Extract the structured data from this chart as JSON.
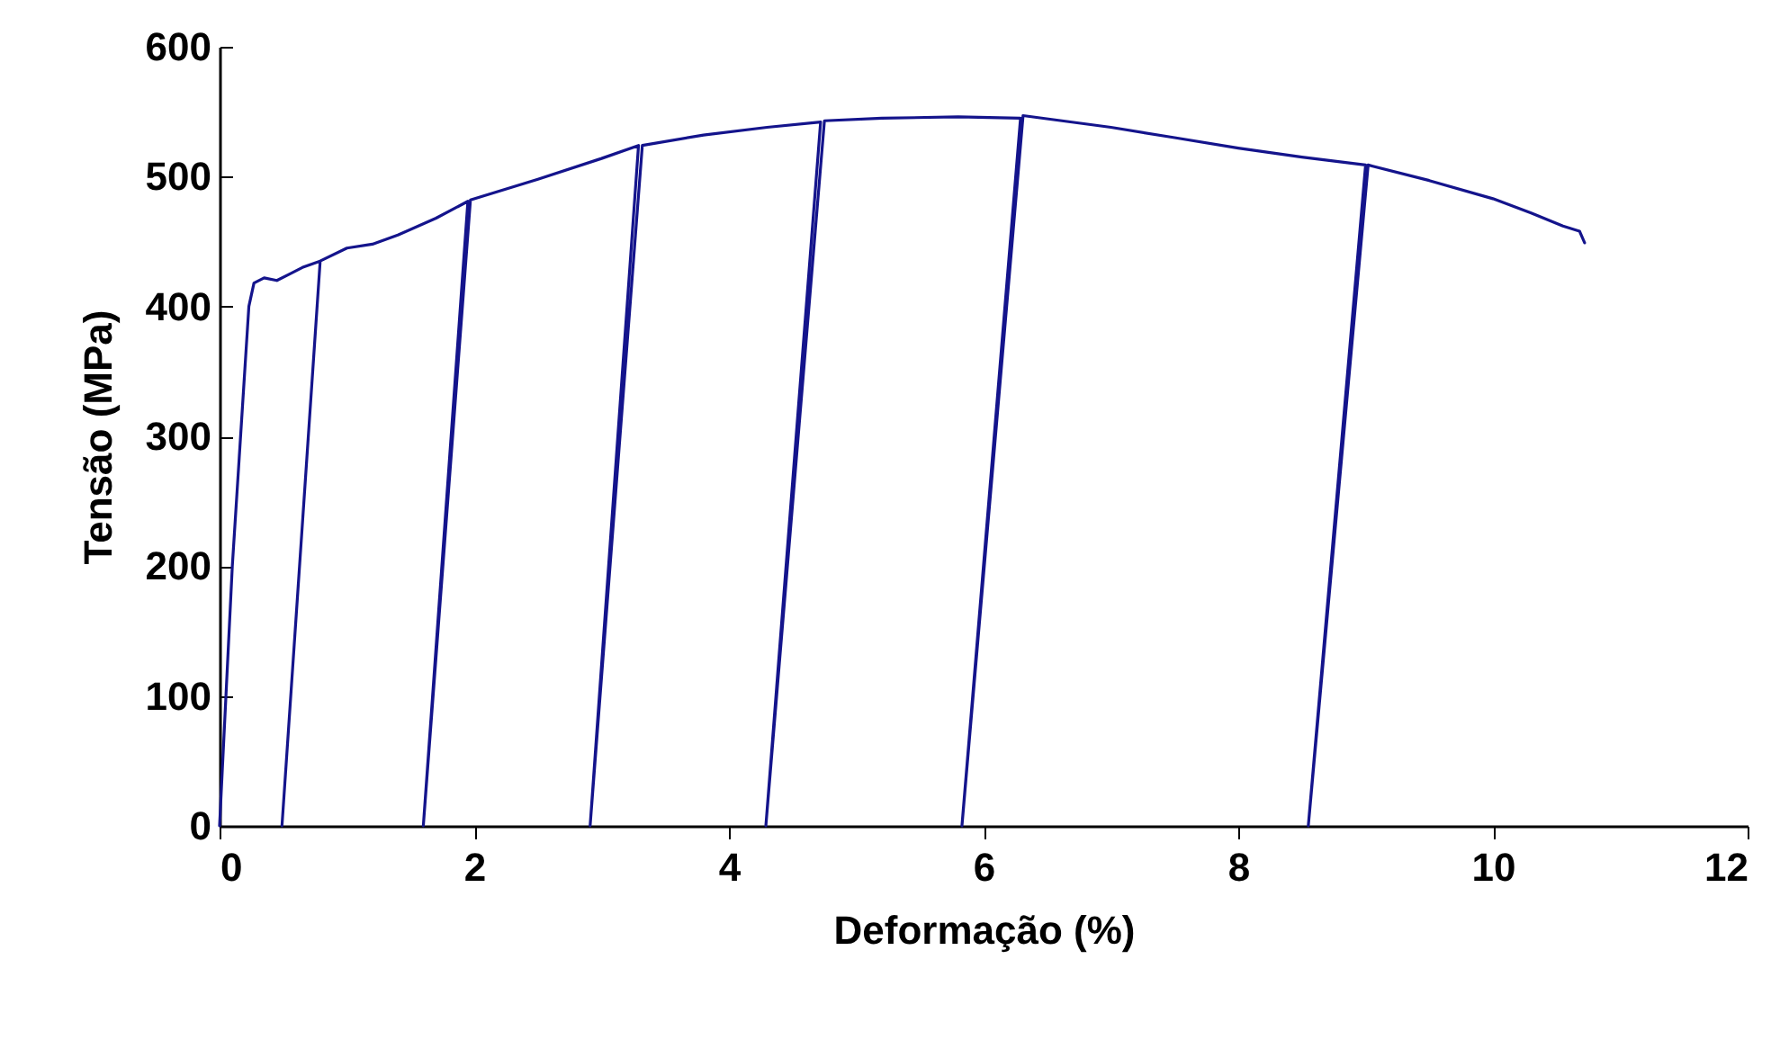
{
  "chart_data": {
    "type": "line",
    "xlabel": "Deformação (%)",
    "ylabel": "Tensão (MPa)",
    "xlim": [
      0,
      12
    ],
    "xticks": [
      0,
      2,
      4,
      6,
      8,
      10,
      12
    ],
    "ylim": [
      0,
      600
    ],
    "yticks": [
      0,
      100,
      200,
      300,
      400,
      500,
      600
    ],
    "grid": false,
    "marker": "none",
    "line_style": "solid",
    "x": [
      0,
      0.1,
      0.23,
      0.27,
      0.35,
      0.45,
      0.55,
      0.65,
      0.79,
      0.49,
      0.79,
      1.0,
      1.2,
      1.4,
      1.7,
      1.95,
      1.6,
      1.97,
      2.5,
      3.0,
      3.29,
      2.91,
      3.32,
      3.8,
      4.3,
      4.72,
      4.29,
      4.75,
      5.2,
      5.8,
      6.29,
      5.83,
      6.31,
      7.0,
      7.5,
      8.0,
      8.5,
      9.0,
      8.55,
      9.02,
      9.5,
      10.0,
      10.3,
      10.55,
      10.68,
      10.72
    ],
    "series": [
      {
        "color": "#14148c",
        "values": [
          0,
          200,
          400,
          418,
          422,
          420,
          425,
          430,
          435,
          0,
          435,
          445,
          448,
          455,
          468,
          481,
          0,
          482,
          498,
          514,
          524,
          0,
          524,
          532,
          538,
          542,
          0,
          543,
          545,
          546,
          545,
          0,
          547,
          538,
          530,
          522,
          515,
          509,
          0,
          509,
          497,
          483,
          472,
          462,
          458,
          449
        ]
      }
    ]
  }
}
